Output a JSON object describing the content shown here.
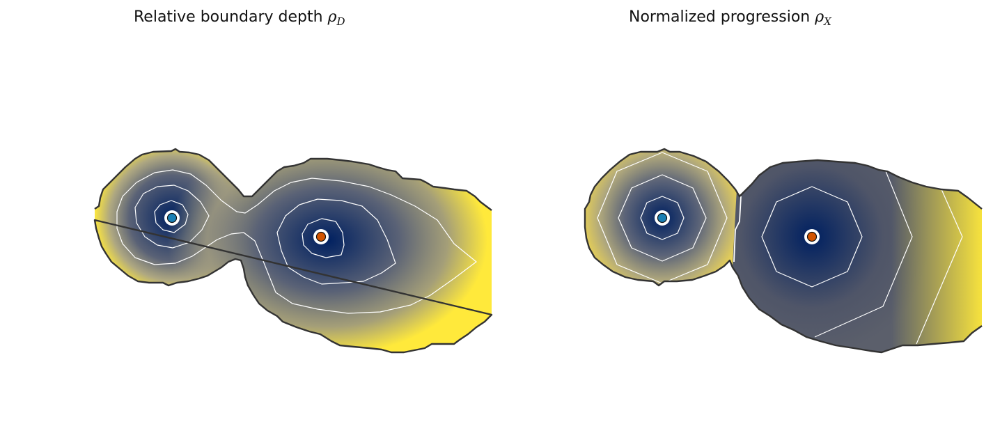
{
  "panels": [
    {
      "title_text": "Relative boundary depth ",
      "title_symbol": "ρ",
      "title_subscript": "D"
    },
    {
      "title_text": "Normalized progression ",
      "title_symbol": "ρ",
      "title_subscript": "X"
    }
  ],
  "colors": {
    "colormap_low": "#002060",
    "colormap_mid": "#7f7f7f",
    "colormap_high": "#ffe93b",
    "boundary": "#333333",
    "contour": "#ffffff",
    "seed_blue": "#1a80b5",
    "seed_orange": "#d35400"
  }
}
